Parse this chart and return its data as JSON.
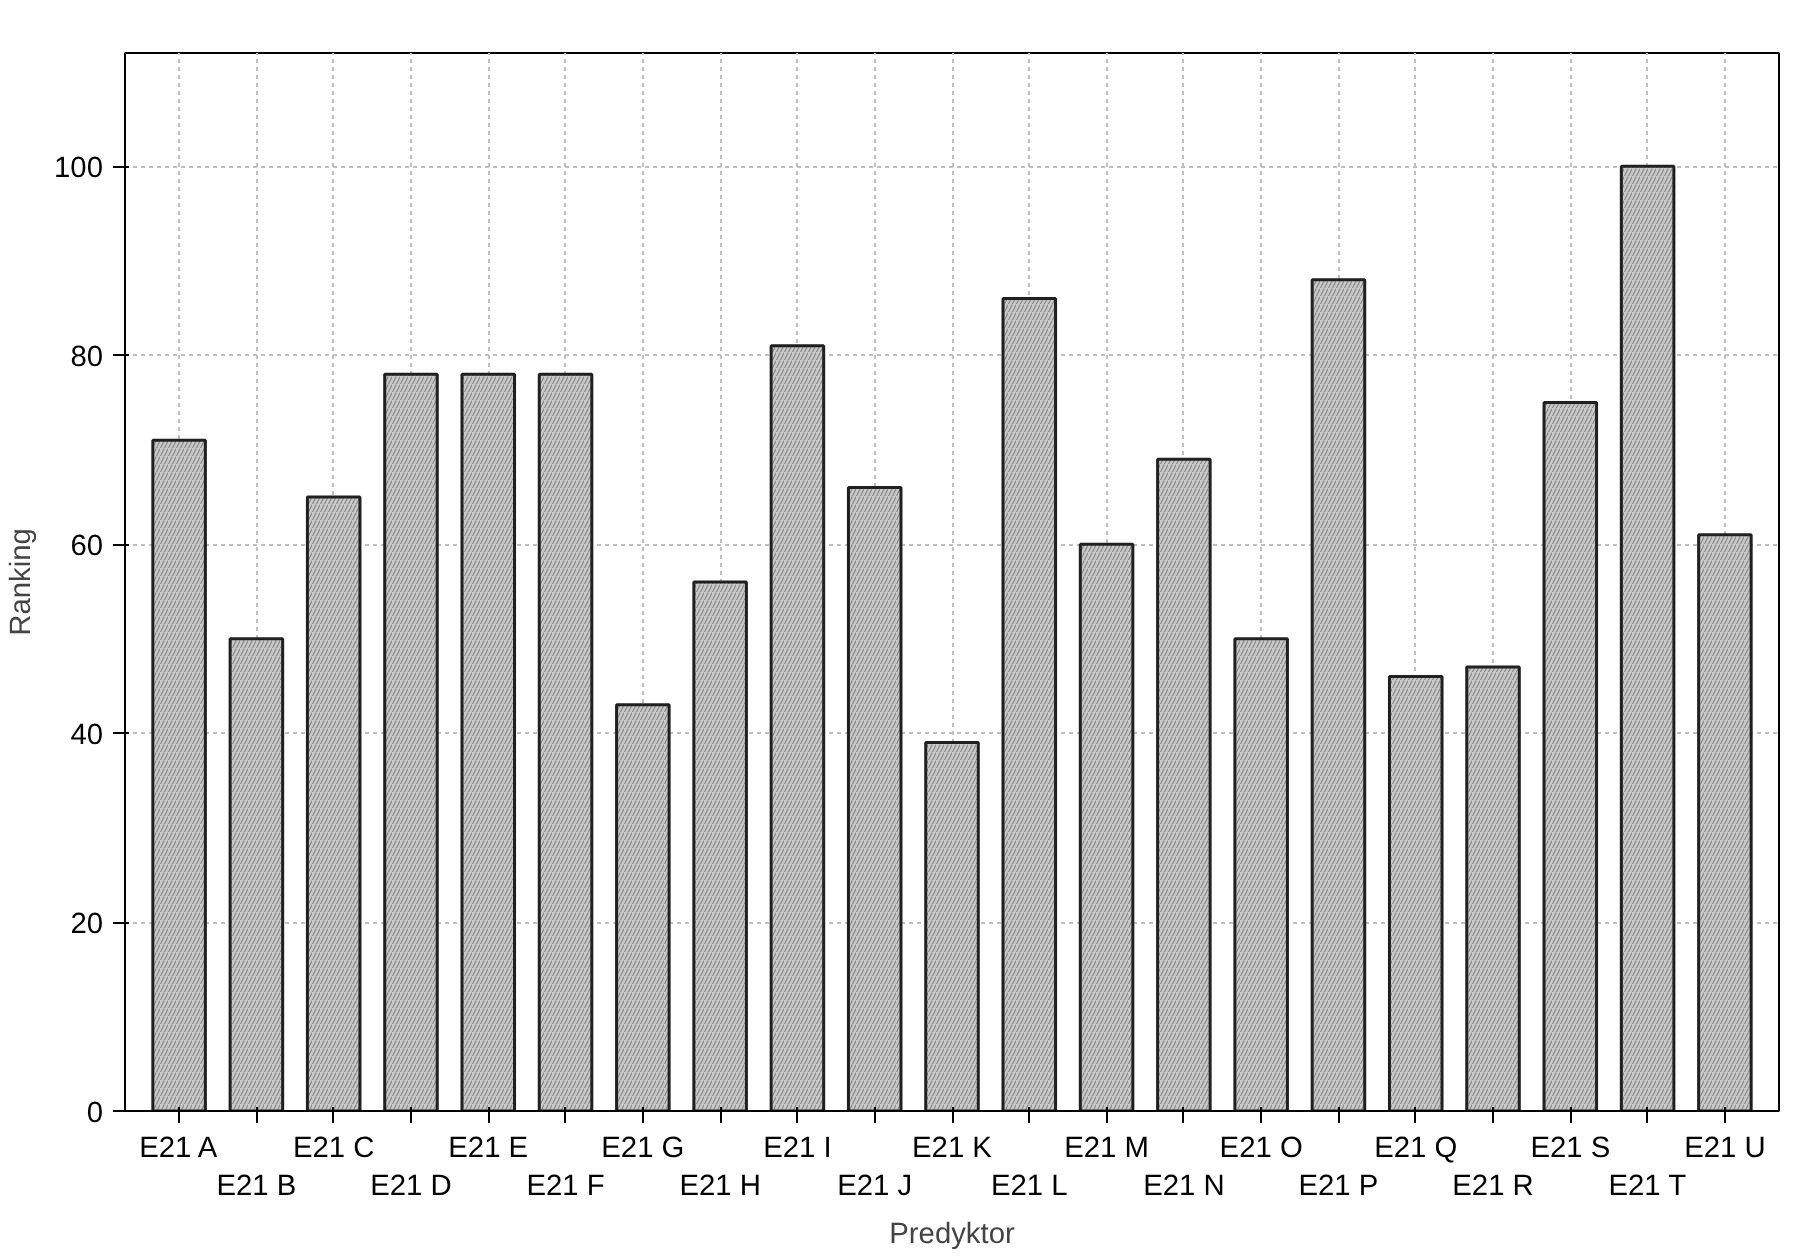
{
  "chart_data": {
    "type": "bar",
    "xlabel": "Predyktor",
    "ylabel": "Ranking",
    "categories": [
      "E21 A",
      "E21 B",
      "E21 C",
      "E21 D",
      "E21 E",
      "E21 F",
      "E21 G",
      "E21 H",
      "E21 I",
      "E21 J",
      "E21 K",
      "E21 L",
      "E21 M",
      "E21 N",
      "E21 O",
      "E21 P",
      "E21 Q",
      "E21 R",
      "E21 S",
      "E21 T",
      "E21 U"
    ],
    "values": [
      71,
      50,
      65,
      78,
      78,
      78,
      43,
      56,
      81,
      66,
      39,
      86,
      60,
      69,
      50,
      88,
      46,
      47,
      75,
      100,
      61
    ],
    "color": "#c8c8c8",
    "ylim": [
      0,
      112
    ],
    "yticks": [
      0,
      20,
      40,
      60,
      80,
      100
    ],
    "grid": true
  }
}
